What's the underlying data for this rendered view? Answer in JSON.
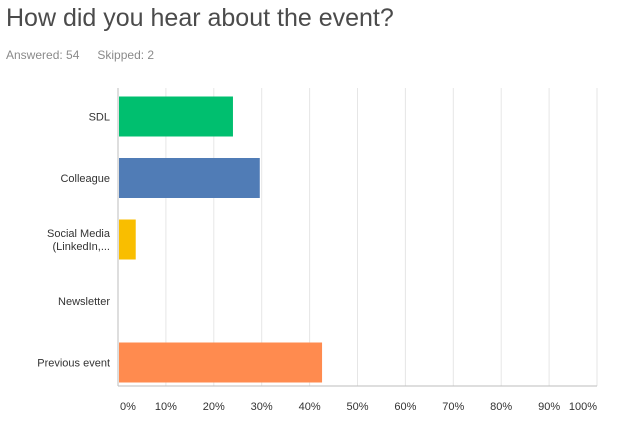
{
  "question": {
    "title": "How did you hear about the event?",
    "answered_label": "Answered: 54",
    "skipped_label": "Skipped: 2"
  },
  "chart_data": {
    "type": "bar",
    "orientation": "horizontal",
    "categories": [
      [
        "SDL"
      ],
      [
        "Colleague"
      ],
      [
        "Social Media",
        "(LinkedIn,..."
      ],
      [
        "Newsletter"
      ],
      [
        "Previous event"
      ]
    ],
    "values": [
      24,
      29.6,
      3.7,
      0,
      42.6
    ],
    "colors": [
      "#00bf6f",
      "#507cb6",
      "#f9be00",
      "#6bc8cd",
      "#ff8b4f"
    ],
    "xlim": [
      0,
      100
    ],
    "xticks": [
      "0%",
      "10%",
      "20%",
      "30%",
      "40%",
      "50%",
      "60%",
      "70%",
      "80%",
      "90%",
      "100%"
    ],
    "grid": true,
    "title": "",
    "xlabel": "",
    "ylabel": ""
  }
}
